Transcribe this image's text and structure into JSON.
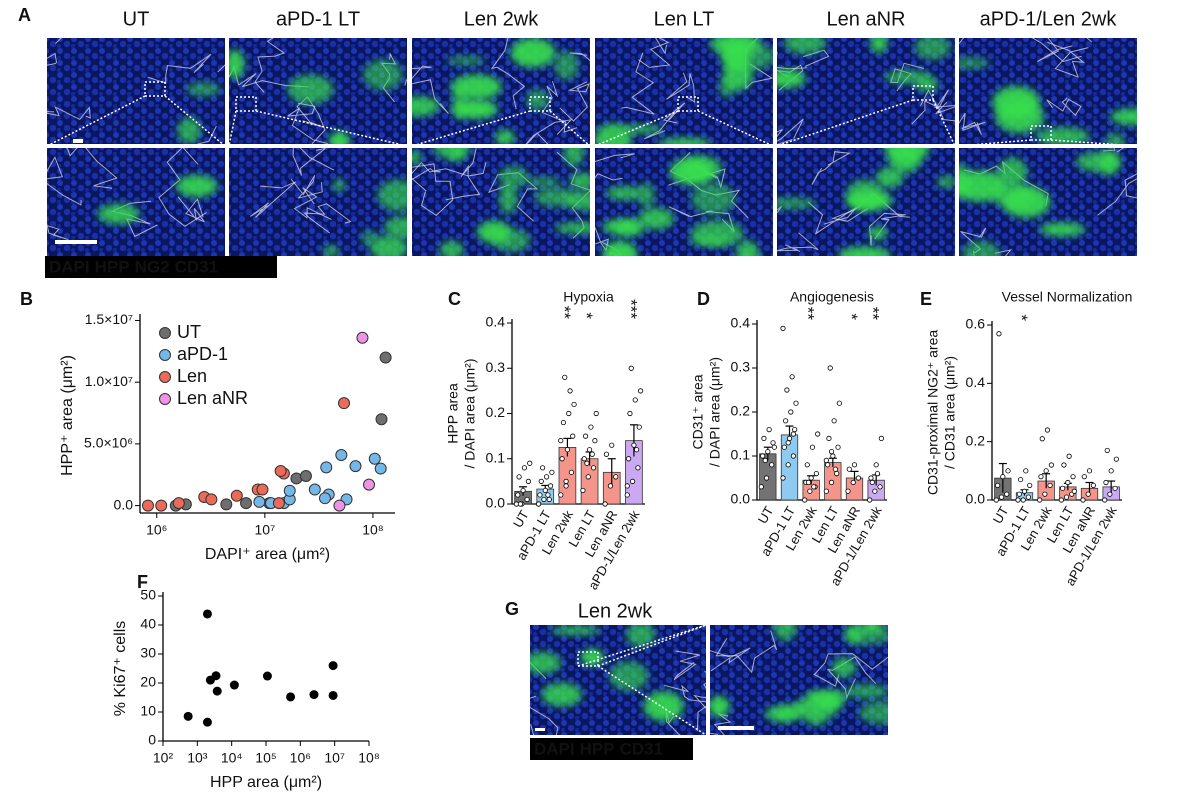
{
  "panel_a": {
    "label": "A",
    "columns": [
      "UT",
      "aPD-1 LT",
      "Len 2wk",
      "Len LT",
      "Len aNR",
      "aPD-1/Len 2wk"
    ],
    "stain_legend": [
      {
        "text": "DAPI",
        "color": "#2f4cff"
      },
      {
        "text": "HPP",
        "color": "#1fcf45"
      },
      {
        "text": "NG2",
        "color": "#f0241c"
      },
      {
        "text": "CD31",
        "color": "#ffffff"
      }
    ]
  },
  "panel_g": {
    "label": "G",
    "title": "Len 2wk",
    "stain_legend": [
      {
        "text": "DAPI",
        "color": "#2f4cff"
      },
      {
        "text": "HPP",
        "color": "#1fcf45"
      },
      {
        "text": "CD31",
        "color": "#ffffff"
      }
    ]
  },
  "chart_data": [
    {
      "panel_label": "B",
      "type": "scatter",
      "xlabel": "DAPI⁺ area (μm²)",
      "ylabel": "HPP⁺ area (μm²)",
      "xscale": "log",
      "xlim": [
        700000,
        160000000
      ],
      "xticks": [
        {
          "value": 1000000,
          "label": "10⁶"
        },
        {
          "value": 10000000,
          "label": "10⁷"
        },
        {
          "value": 100000000,
          "label": "10⁸"
        }
      ],
      "ylim": [
        -600000,
        15200000
      ],
      "yticks": [
        {
          "value": 0,
          "label": "0.0"
        },
        {
          "value": 5000000,
          "label": "5.0×10⁶"
        },
        {
          "value": 10000000,
          "label": "1.0×10⁷"
        },
        {
          "value": 15000000,
          "label": "1.5×10⁷"
        }
      ],
      "legend": "upper left",
      "series": [
        {
          "name": "UT",
          "color": "#6e6e6e",
          "x": [
            131000000,
            120000000,
            1500000,
            1860000,
            4400000,
            6700000,
            19600000,
            24000000,
            11000000
          ],
          "values": [
            12000000,
            7000000,
            0,
            100000,
            100000,
            200000,
            2200000,
            2400000,
            200000
          ]
        },
        {
          "name": "aPD-1",
          "color": "#74b8ea",
          "x": [
            51000000,
            69000000,
            37000000,
            104000000,
            118000000,
            29000000,
            39000000,
            15000000,
            17000000,
            11400000,
            8900000,
            36000000,
            57000000,
            17000000
          ],
          "values": [
            4100000,
            3200000,
            3100000,
            3800000,
            3000000,
            1300000,
            900000,
            200000,
            500000,
            200000,
            300000,
            600000,
            500000,
            1200000
          ]
        },
        {
          "name": "Len",
          "color": "#ec6a58",
          "x": [
            15000000,
            14000000,
            54000000,
            8600000,
            9500000,
            2750000,
            3200000,
            5500000,
            830000,
            1100000,
            1600000,
            13500000
          ],
          "values": [
            2600000,
            2800000,
            8300000,
            1300000,
            1300000,
            700000,
            500000,
            800000,
            0,
            0,
            200000,
            200000
          ]
        },
        {
          "name": "Len aNR",
          "color": "#ee93e6",
          "x": [
            80000000,
            92000000,
            49000000
          ],
          "values": [
            13600000,
            1700000,
            0
          ]
        }
      ]
    },
    {
      "panel_label": "C",
      "type": "bar",
      "title": "Hypoxia",
      "ylabel": [
        "HPP area",
        "/ DAPI area (μm²)"
      ],
      "categories": [
        "UT",
        "aPD-1 LT",
        "Len 2wk",
        "Len LT",
        "Len aNR",
        "aPD-1/Len 2wk"
      ],
      "values": [
        0.028,
        0.033,
        0.125,
        0.1,
        0.07,
        0.14
      ],
      "errors": [
        0.01,
        0.008,
        0.02,
        0.015,
        0.03,
        0.035
      ],
      "colors": [
        "#737373",
        "#8fcaf0",
        "#f3958b",
        "#f3958b",
        "#f3958b",
        "#caa8f2"
      ],
      "points": [
        [
          0,
          0,
          0.01,
          0.02,
          0.03,
          0.05,
          0.06,
          0.08,
          0.09,
          0
        ],
        [
          0,
          0.01,
          0.01,
          0.02,
          0.03,
          0.04,
          0.05,
          0.06,
          0.07,
          0.08,
          0.02,
          0
        ],
        [
          0.02,
          0.05,
          0.07,
          0.1,
          0.12,
          0.15,
          0.18,
          0.2,
          0.22,
          0.28,
          0.25,
          0.14,
          0.04
        ],
        [
          0.03,
          0.06,
          0.08,
          0.1,
          0.12,
          0.14,
          0.15,
          0.17,
          0.2,
          0.09,
          0.11
        ],
        [
          0,
          0.04,
          0.06,
          0.11,
          0.13
        ],
        [
          0.02,
          0.05,
          0.08,
          0.1,
          0.13,
          0.17,
          0.2,
          0.23,
          0.25,
          0.3,
          0.12,
          0.04
        ]
      ],
      "significance": [
        null,
        null,
        "**",
        "*",
        null,
        "***"
      ],
      "significance_color": "#a3231a",
      "ylim": [
        0,
        0.4
      ],
      "yticks": [
        {
          "value": 0,
          "label": "0.0"
        },
        0.1,
        0.2,
        0.3,
        0.4
      ]
    },
    {
      "panel_label": "D",
      "type": "bar",
      "title": "Angiogenesis",
      "ylabel": [
        "CD31⁺ area",
        "/ DAPI area (μm²)"
      ],
      "categories": [
        "UT",
        "aPD-1 LT",
        "Len 2wk",
        "Len LT",
        "Len aNR",
        "aPD-1/Len 2wk"
      ],
      "values": [
        0.105,
        0.148,
        0.045,
        0.085,
        0.05,
        0.045
      ],
      "errors": [
        0.015,
        0.02,
        0.01,
        0.01,
        0.015,
        0.012
      ],
      "colors": [
        "#737373",
        "#8fcaf0",
        "#f3958b",
        "#f3958b",
        "#f3958b",
        "#caa8f2"
      ],
      "points": [
        [
          0.03,
          0.05,
          0.08,
          0.1,
          0.11,
          0.13,
          0.14,
          0.16,
          0.12,
          0.09
        ],
        [
          0.05,
          0.08,
          0.1,
          0.12,
          0.14,
          0.16,
          0.18,
          0.2,
          0.22,
          0.25,
          0.28,
          0.39,
          0.13,
          0.15
        ],
        [
          0,
          0.02,
          0.03,
          0.04,
          0.05,
          0.06,
          0.08,
          0.12,
          0.15,
          0.04,
          0.03
        ],
        [
          0.02,
          0.04,
          0.06,
          0.08,
          0.1,
          0.12,
          0.14,
          0.18,
          0.22,
          0.3,
          0.07,
          0.09,
          0.11
        ],
        [
          0.02,
          0.04,
          0.05,
          0.07,
          0.08
        ],
        [
          0,
          0.02,
          0.03,
          0.05,
          0.08,
          0.14,
          0.04,
          0.06
        ]
      ],
      "significance": [
        null,
        null,
        "**",
        null,
        "*",
        "**"
      ],
      "significance_color": "#a3231a",
      "ylim": [
        0,
        0.4
      ],
      "yticks": [
        {
          "value": 0,
          "label": "0.0"
        },
        0.1,
        0.2,
        0.3,
        0.4
      ]
    },
    {
      "panel_label": "E",
      "type": "bar",
      "title": "Vessel Normalization",
      "ylabel": [
        "CD31-proximal NG2⁺ area",
        "/ CD31 area (μm²)"
      ],
      "categories": [
        "UT",
        "aPD-1 LT",
        "Len 2wk",
        "Len LT",
        "Len aNR",
        "aPD-1/Len 2wk"
      ],
      "values": [
        0.075,
        0.025,
        0.065,
        0.045,
        0.04,
        0.045
      ],
      "errors": [
        0.05,
        0.01,
        0.025,
        0.012,
        0.02,
        0.02
      ],
      "colors": [
        "#737373",
        "#8fcaf0",
        "#f3958b",
        "#f3958b",
        "#f3958b",
        "#caa8f2"
      ],
      "points": [
        [
          0,
          0.01,
          0.02,
          0.05,
          0.08,
          0.1,
          0.57
        ],
        [
          0,
          0,
          0.01,
          0.02,
          0.03,
          0.05,
          0.07,
          0.1
        ],
        [
          0,
          0.02,
          0.05,
          0.08,
          0.1,
          0.12,
          0.21,
          0.24
        ],
        [
          0,
          0.01,
          0.02,
          0.04,
          0.06,
          0.08,
          0.12,
          0.15,
          0.03
        ],
        [
          0,
          0.02,
          0.05,
          0.08,
          0.1
        ],
        [
          0,
          0.02,
          0.04,
          0.06,
          0.1,
          0.14,
          0.17
        ]
      ],
      "significance": [
        null,
        "*",
        null,
        null,
        null,
        null
      ],
      "significance_color": "#a3231a",
      "ylim": [
        0,
        0.6
      ],
      "yticks": [
        {
          "value": 0,
          "label": "0.0"
        },
        0.2,
        0.4,
        0.6
      ]
    },
    {
      "panel_label": "F",
      "type": "scatter",
      "xlabel": "HPP area  (μm²)",
      "ylabel": "% Ki67⁺ cells",
      "xscale": "log",
      "xlim": [
        100,
        100000000
      ],
      "xticks": [
        {
          "value": 100,
          "label": "10²"
        },
        {
          "value": 1000,
          "label": "10³"
        },
        {
          "value": 10000,
          "label": "10⁴"
        },
        {
          "value": 100000,
          "label": "10⁵"
        },
        {
          "value": 1000000,
          "label": "10⁶"
        },
        {
          "value": 10000000,
          "label": "10⁷"
        },
        {
          "value": 100000000,
          "label": "10⁸"
        }
      ],
      "ylim": [
        0,
        50
      ],
      "yticks": [
        0,
        10,
        20,
        30,
        40,
        50
      ],
      "color": "#000000",
      "x": [
        540,
        1970,
        2400,
        1970,
        3500,
        3800,
        12000,
        110000,
        520000,
        2500000,
        9000000,
        9000000
      ],
      "values": [
        8.5,
        43.8,
        21,
        6.5,
        22.5,
        17.2,
        19.3,
        22.4,
        15.2,
        16,
        26,
        15.7
      ]
    }
  ]
}
